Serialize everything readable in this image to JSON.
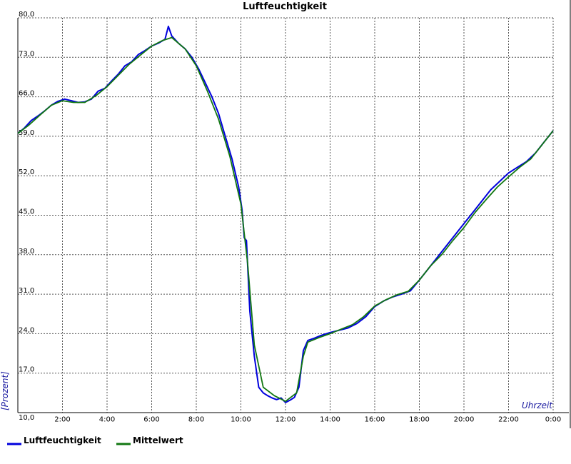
{
  "chart_data": {
    "type": "line",
    "title": "Luftfeuchtigkeit",
    "xlabel": "Uhrzeit",
    "ylabel": "[Prozent]",
    "x_tick_labels": [
      "2:00",
      "4:00",
      "6:00",
      "8:00",
      "10:00",
      "12:00",
      "14:00",
      "16:00",
      "18:00",
      "20:00",
      "22:00",
      "0:00"
    ],
    "x_ticks": [
      2,
      4,
      6,
      8,
      10,
      12,
      14,
      16,
      18,
      20,
      22,
      24
    ],
    "xlim": [
      0,
      24
    ],
    "y_tick_labels": [
      "10,0",
      "17,0",
      "24,0",
      "31,0",
      "38,0",
      "45,0",
      "52,0",
      "59,0",
      "66,0",
      "73,0",
      "80,0"
    ],
    "y_ticks": [
      10,
      17,
      24,
      31,
      38,
      45,
      52,
      59,
      66,
      73,
      80
    ],
    "ylim": [
      10,
      80
    ],
    "grid": true,
    "legend_position": "bottom-left",
    "series": [
      {
        "name": "Luftfeuchtigkeit",
        "color": "#0000dd",
        "x": [
          0.0,
          0.3,
          0.6,
          0.9,
          1.2,
          1.5,
          1.8,
          2.1,
          2.4,
          2.7,
          3.0,
          3.3,
          3.6,
          3.9,
          4.2,
          4.5,
          4.8,
          5.1,
          5.4,
          5.7,
          6.0,
          6.3,
          6.6,
          6.75,
          6.9,
          7.2,
          7.5,
          7.8,
          8.1,
          8.4,
          8.7,
          9.0,
          9.3,
          9.6,
          9.9,
          10.05,
          10.15,
          10.25,
          10.4,
          10.6,
          10.8,
          11.0,
          11.2,
          11.4,
          11.6,
          11.8,
          12.0,
          12.2,
          12.4,
          12.6,
          12.8,
          13.0,
          13.3,
          13.6,
          14.0,
          14.4,
          14.8,
          15.2,
          15.6,
          16.0,
          16.4,
          16.8,
          17.2,
          17.6,
          18.0,
          18.4,
          18.8,
          19.2,
          19.6,
          20.0,
          20.4,
          20.8,
          21.2,
          21.6,
          22.0,
          22.4,
          22.8,
          23.2,
          23.6,
          24.0
        ],
        "values": [
          59.5,
          60.5,
          61.8,
          62.6,
          63.5,
          64.5,
          65.2,
          65.6,
          65.3,
          65.0,
          65.1,
          65.6,
          67.0,
          67.5,
          68.8,
          70.0,
          71.5,
          72.2,
          73.5,
          74.2,
          75.0,
          75.5,
          76.2,
          78.5,
          76.8,
          75.5,
          74.5,
          73.0,
          71.0,
          68.5,
          66.0,
          63.0,
          59.0,
          55.0,
          50.0,
          46.0,
          41.0,
          40.5,
          28.0,
          20.0,
          14.5,
          13.5,
          13.0,
          12.6,
          12.3,
          12.6,
          11.8,
          12.2,
          12.7,
          14.5,
          21.0,
          22.8,
          23.2,
          23.7,
          24.2,
          24.6,
          25.0,
          25.8,
          27.0,
          28.8,
          29.8,
          30.5,
          31.0,
          31.6,
          33.5,
          35.5,
          37.5,
          39.5,
          41.5,
          43.5,
          45.5,
          47.5,
          49.5,
          51.0,
          52.5,
          53.5,
          54.5,
          56.0,
          58.0,
          60.0
        ]
      },
      {
        "name": "Mittelwert",
        "color": "#117711",
        "x": [
          0.0,
          0.5,
          1.0,
          1.5,
          2.0,
          2.5,
          3.0,
          3.5,
          4.0,
          4.5,
          5.0,
          5.5,
          6.0,
          6.5,
          6.9,
          7.5,
          8.0,
          8.5,
          9.0,
          9.5,
          10.0,
          10.3,
          10.6,
          11.0,
          11.5,
          12.0,
          12.5,
          12.8,
          13.0,
          13.5,
          14.0,
          14.5,
          15.0,
          15.5,
          16.0,
          16.5,
          17.0,
          17.5,
          18.0,
          18.5,
          19.0,
          19.5,
          20.0,
          20.5,
          21.0,
          21.5,
          22.0,
          22.5,
          23.0,
          23.5,
          24.0
        ],
        "values": [
          59.5,
          61.0,
          62.8,
          64.5,
          65.3,
          65.0,
          65.0,
          66.2,
          67.8,
          69.8,
          71.8,
          73.4,
          75.0,
          76.0,
          76.5,
          74.5,
          71.5,
          67.0,
          62.0,
          55.5,
          47.0,
          36.5,
          22.0,
          14.5,
          13.0,
          12.0,
          13.5,
          20.0,
          22.5,
          23.3,
          24.0,
          24.8,
          25.6,
          27.0,
          28.9,
          30.0,
          30.9,
          31.5,
          33.5,
          36.0,
          38.0,
          40.5,
          42.8,
          45.5,
          47.8,
          50.0,
          51.8,
          53.5,
          55.0,
          57.5,
          60.0
        ]
      }
    ]
  }
}
